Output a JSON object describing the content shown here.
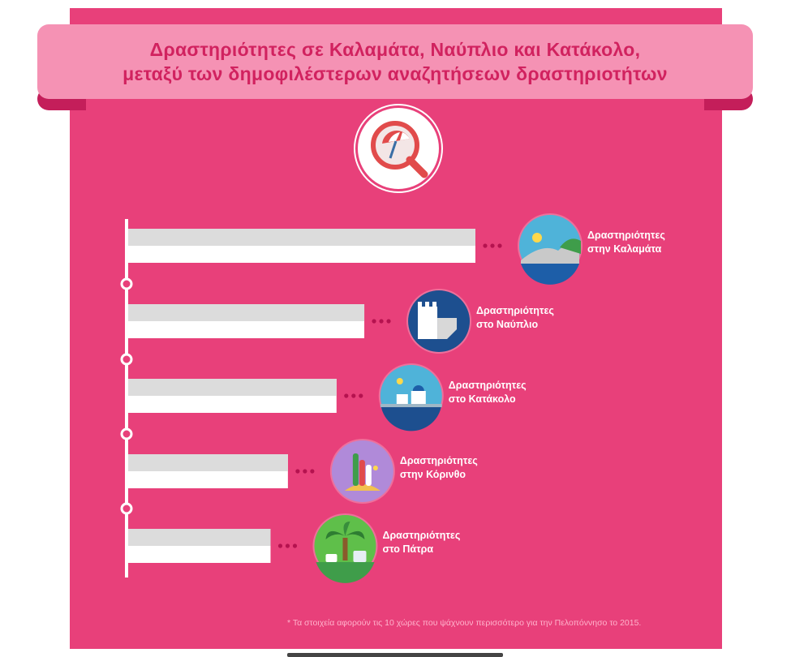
{
  "title": {
    "line1": "Δραστηριότητες σε Καλαμάτα, Ναύπλιο και Κατάκολο,",
    "line2": "μεταξύ των δημοφιλέστερων αναζητήσεων δραστηριοτήτων"
  },
  "icons": {
    "header": "search-beach-umbrella-icon",
    "bars": [
      "kalamata-coast-icon",
      "nafplio-castle-icon",
      "katakolo-island-houses-icon",
      "korinthos-surfboards-icon",
      "patra-palm-tree-icon"
    ]
  },
  "chart_data": {
    "type": "bar",
    "orientation": "horizontal",
    "categories": [
      "Δραστηριότητες στην Καλαμάτα",
      "Δραστηριότητες στο Ναύπλιο",
      "Δραστηριότητες στο Κατάκολο",
      "Δραστηριότητες στην Κόρινθο",
      "Δραστηριότητες στο Πάτρα"
    ],
    "label_lines": [
      [
        "Δραστηριότητες",
        "στην Καλαμάτα"
      ],
      [
        "Δραστηριότητες",
        "στο Ναύπλιο"
      ],
      [
        "Δραστηριότητες",
        "στο Κατάκολο"
      ],
      [
        "Δραστηριότητες",
        "στην Κόρινθο"
      ],
      [
        "Δραστηριότητες",
        "στο Πάτρα"
      ]
    ],
    "values": [
      100,
      68,
      60,
      46,
      41
    ],
    "xlim": [
      0,
      100
    ],
    "grid": false,
    "value_labels_shown": false
  },
  "colors": {
    "background": "#e8407a",
    "ribbon": "#f592b4",
    "ribbon_fold": "#c41e5a",
    "title_text": "#d1225f",
    "bar": "#ffffff",
    "bar_shade": "#dcdcdc",
    "dots": "#b5124f",
    "footnote": "#ffb3cc"
  },
  "footnote": "* Τα στοιχεία αφορούν τις 10 χώρες που ψάχνουν περισσότερο για την Πελοπόννησο το 2015."
}
